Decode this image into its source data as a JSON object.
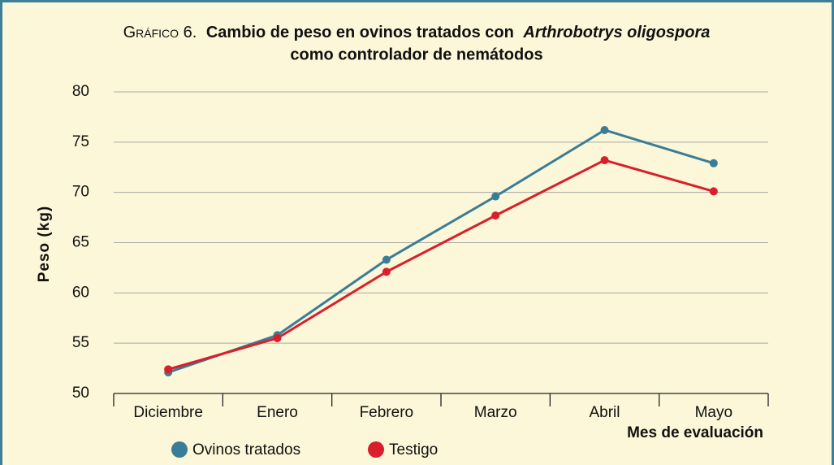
{
  "chart_data": {
    "type": "line",
    "label": "Gráfico 6.",
    "title": [
      "Cambio de peso en ovinos tratados con",
      "Arthrobotrys oligospora",
      "como controlador de nemátodos"
    ],
    "y_label": "Peso (kg)",
    "x_label": "Mes de evaluación",
    "categories": [
      "Diciembre",
      "Enero",
      "Febrero",
      "Marzo",
      "Abril",
      "Mayo"
    ],
    "series": [
      {
        "name": "Ovinos tratados",
        "color": "#3a7d98",
        "values": [
          52.1,
          55.8,
          63.3,
          69.6,
          76.2,
          72.9
        ]
      },
      {
        "name": "Testigo",
        "color": "#d81f2a",
        "values": [
          52.4,
          55.5,
          62.1,
          67.7,
          73.2,
          70.1
        ]
      }
    ],
    "ylim": [
      50,
      80
    ],
    "yticks": [
      50,
      55,
      60,
      65,
      70,
      75,
      80
    ],
    "grid": true
  }
}
